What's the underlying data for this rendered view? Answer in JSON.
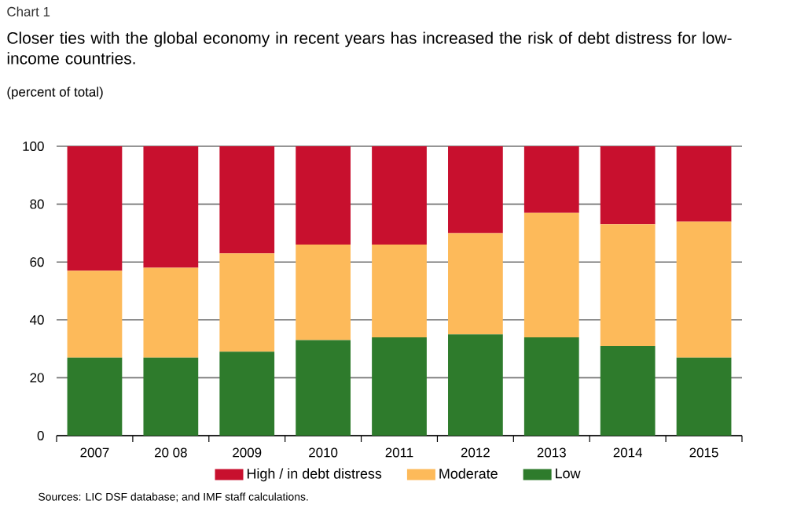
{
  "chart_data": {
    "type": "bar",
    "stacked": true,
    "title": "Chart 1",
    "subtitle": "Closer ties with the global economy in recent years has increased the risk of debt distress for low-income countries.",
    "ylabel": "(percent of total)",
    "categories": [
      "2007",
      "20 08",
      "2009",
      "2010",
      "2011",
      "2012",
      "2013",
      "2014",
      "2015"
    ],
    "series": [
      {
        "name": "Low",
        "color": "#2e7b2c",
        "values": [
          27,
          27,
          29,
          33,
          34,
          35,
          34,
          31,
          27
        ]
      },
      {
        "name": "Moderate",
        "color": "#fdba5a",
        "values": [
          30,
          31,
          34,
          33,
          32,
          35,
          43,
          42,
          47
        ]
      },
      {
        "name": "High / in debt distress",
        "color": "#c8102e",
        "values": [
          43,
          42,
          37,
          34,
          34,
          30,
          23,
          27,
          26
        ]
      }
    ],
    "ylim": [
      0,
      100
    ],
    "yticks": [
      0,
      20,
      40,
      60,
      80,
      100
    ],
    "grid": "y",
    "legend": "bottom",
    "annotations": [
      "Sources: LIC DSF database; and IMF staff calculations."
    ]
  }
}
